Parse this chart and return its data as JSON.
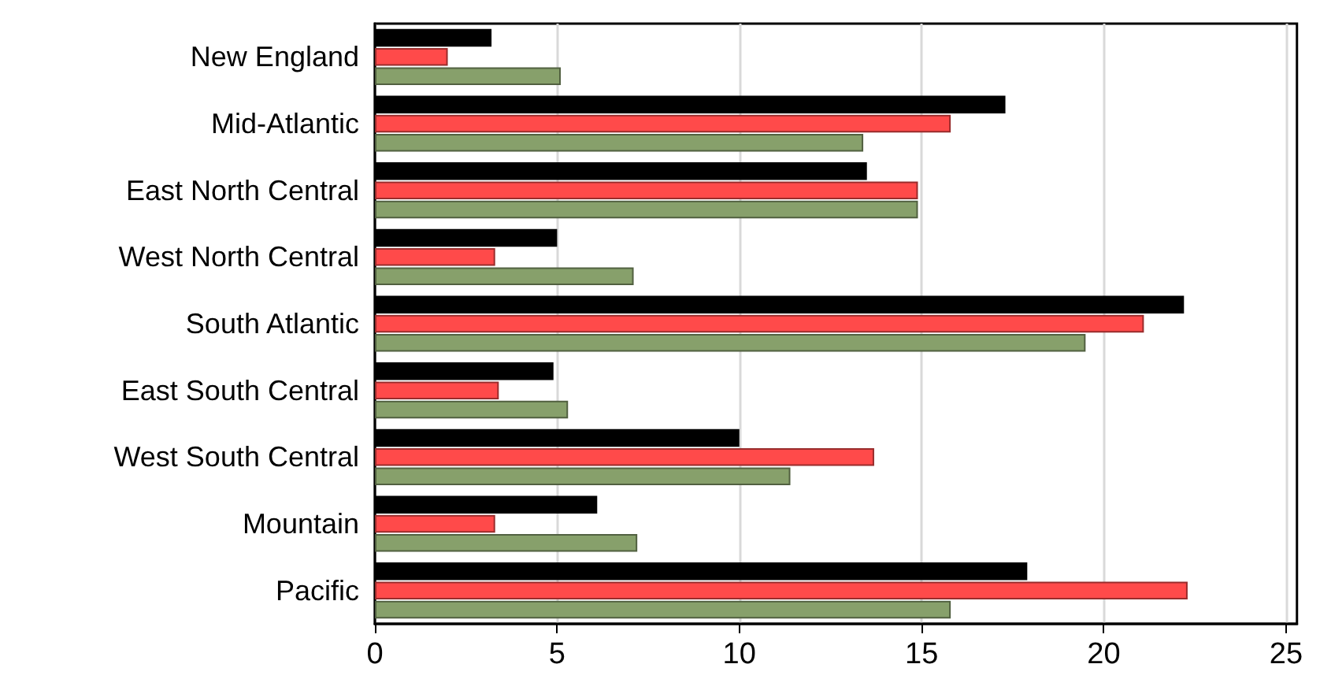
{
  "chart_data": {
    "type": "bar",
    "orientation": "horizontal",
    "categories": [
      "New England",
      "Mid-Atlantic",
      "East North Central",
      "West North Central",
      "South Atlantic",
      "East South Central",
      "West South Central",
      "Mountain",
      "Pacific"
    ],
    "series": [
      {
        "color": "#000000",
        "values": [
          3.2,
          17.3,
          13.5,
          5.0,
          22.2,
          4.9,
          10.0,
          6.1,
          17.9
        ]
      },
      {
        "color": "#ff4a4a",
        "values": [
          2.0,
          15.8,
          14.9,
          3.3,
          21.1,
          3.4,
          13.7,
          3.3,
          22.3
        ]
      },
      {
        "color": "#87a06b",
        "values": [
          5.1,
          13.4,
          14.9,
          7.1,
          19.5,
          5.3,
          11.4,
          7.2,
          15.8
        ]
      }
    ],
    "xlim": [
      0,
      25.3
    ],
    "xticks": [
      0,
      5,
      10,
      15,
      20,
      25
    ],
    "grid": "x"
  }
}
